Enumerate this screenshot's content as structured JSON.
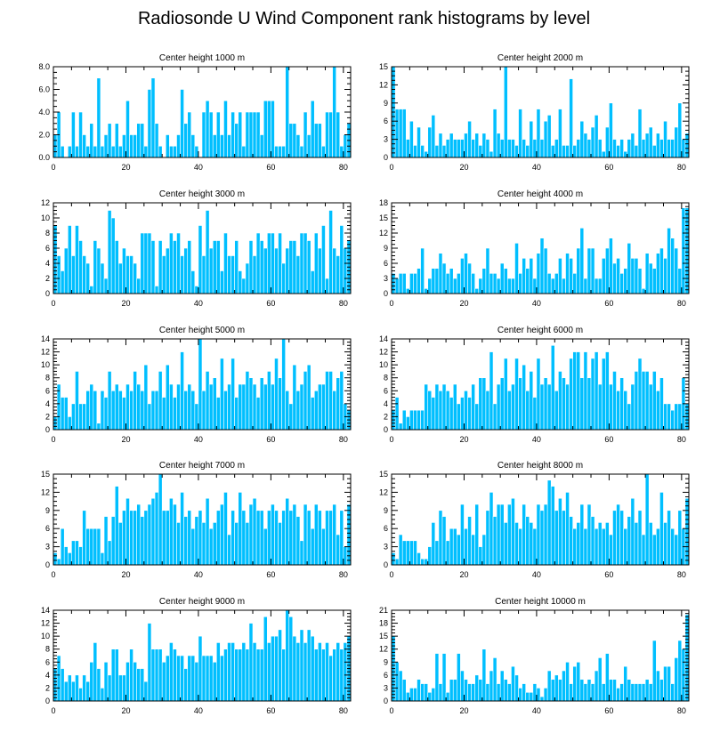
{
  "title": "Radiosonde U Wind Component rank histograms by level",
  "colors": {
    "bar": "#00bfff",
    "bar_edge": "#ffffff",
    "axis": "#000000"
  },
  "chart_data": [
    {
      "type": "bar",
      "title": "Center height 1000 m",
      "xlabel": "",
      "ylabel": "",
      "xlim": [
        0,
        82
      ],
      "ylim": [
        0,
        8
      ],
      "xticks": [
        0,
        20,
        40,
        60,
        80
      ],
      "yticks": [
        0,
        2,
        4,
        6,
        8
      ],
      "ytick_labels": [
        "0.0",
        "2.0",
        "4.0",
        "6.0",
        "8.0"
      ],
      "values": [
        2,
        4,
        1,
        0,
        1,
        4,
        1,
        4,
        2,
        1,
        3,
        1,
        7,
        1,
        2,
        3,
        1,
        3,
        1,
        2,
        5,
        2,
        2,
        3,
        3,
        1,
        6,
        7,
        3,
        1,
        0,
        2,
        1,
        1,
        2,
        6,
        3,
        4,
        2,
        1,
        0,
        4,
        5,
        4,
        2,
        4,
        2,
        5,
        2,
        4,
        3,
        4,
        1,
        4,
        4,
        4,
        4,
        2,
        5,
        5,
        5,
        1,
        1,
        1,
        8,
        3,
        3,
        2,
        1,
        4,
        2,
        5,
        3,
        3,
        1,
        4,
        4,
        8,
        4,
        1,
        2,
        3
      ]
    },
    {
      "type": "bar",
      "title": "Center height 2000 m",
      "xlabel": "",
      "ylabel": "",
      "xlim": [
        0,
        82
      ],
      "ylim": [
        0,
        15
      ],
      "xticks": [
        0,
        20,
        40,
        60,
        80
      ],
      "yticks": [
        0,
        3,
        6,
        9,
        12,
        15
      ],
      "ytick_labels": [
        "0",
        "3",
        "6",
        "9",
        "12",
        "15"
      ],
      "values": [
        15,
        8,
        8,
        8,
        3,
        6,
        2,
        5,
        2,
        1,
        5,
        7,
        2,
        4,
        2,
        3,
        4,
        3,
        3,
        3,
        4,
        6,
        3,
        4,
        2,
        4,
        3,
        1,
        8,
        4,
        3,
        15,
        3,
        3,
        2,
        8,
        3,
        2,
        6,
        3,
        8,
        3,
        6,
        7,
        2,
        3,
        8,
        2,
        2,
        13,
        2,
        3,
        6,
        4,
        3,
        5,
        7,
        3,
        1,
        5,
        9,
        3,
        2,
        3,
        1,
        3,
        4,
        2,
        8,
        3,
        4,
        5,
        2,
        4,
        3,
        6,
        3,
        3,
        5,
        9,
        3,
        4
      ]
    },
    {
      "type": "bar",
      "title": "Center height 3000 m",
      "xlabel": "",
      "ylabel": "",
      "xlim": [
        0,
        82
      ],
      "ylim": [
        0,
        12
      ],
      "xticks": [
        0,
        20,
        40,
        60,
        80
      ],
      "yticks": [
        0,
        2,
        4,
        6,
        8,
        10,
        12
      ],
      "ytick_labels": [
        "0",
        "2",
        "4",
        "6",
        "8",
        "10",
        "12"
      ],
      "values": [
        9,
        5,
        3,
        6,
        9,
        5,
        9,
        7,
        5,
        4,
        1,
        7,
        6,
        4,
        2,
        11,
        10,
        7,
        4,
        6,
        5,
        5,
        4,
        2,
        8,
        8,
        8,
        7,
        1,
        7,
        5,
        6,
        8,
        7,
        8,
        5,
        6,
        7,
        3,
        1,
        9,
        5,
        11,
        6,
        7,
        7,
        3,
        8,
        5,
        5,
        7,
        3,
        2,
        4,
        7,
        5,
        8,
        7,
        6,
        8,
        8,
        6,
        8,
        4,
        6,
        7,
        7,
        5,
        8,
        8,
        7,
        3,
        8,
        6,
        9,
        2,
        11,
        6,
        5,
        9,
        6,
        7
      ]
    },
    {
      "type": "bar",
      "title": "Center height 4000 m",
      "xlabel": "",
      "ylabel": "",
      "xlim": [
        0,
        82
      ],
      "ylim": [
        0,
        18
      ],
      "xticks": [
        0,
        20,
        40,
        60,
        80
      ],
      "yticks": [
        0,
        3,
        6,
        9,
        12,
        15,
        18
      ],
      "ytick_labels": [
        "0",
        "3",
        "6",
        "9",
        "12",
        "15",
        "18"
      ],
      "values": [
        4,
        3,
        4,
        4,
        1,
        4,
        4,
        5,
        9,
        1,
        3,
        5,
        5,
        8,
        6,
        4,
        5,
        3,
        4,
        7,
        8,
        6,
        4,
        1,
        3,
        5,
        9,
        4,
        4,
        3,
        6,
        5,
        3,
        3,
        10,
        4,
        7,
        5,
        7,
        3,
        8,
        11,
        9,
        4,
        3,
        4,
        7,
        3,
        8,
        7,
        4,
        9,
        13,
        3,
        9,
        9,
        3,
        3,
        7,
        9,
        11,
        6,
        7,
        4,
        5,
        10,
        7,
        7,
        5,
        1,
        8,
        6,
        5,
        8,
        9,
        7,
        13,
        11,
        9,
        5,
        17,
        17
      ]
    },
    {
      "type": "bar",
      "title": "Center height 5000 m",
      "xlabel": "",
      "ylabel": "",
      "xlim": [
        0,
        82
      ],
      "ylim": [
        0,
        14
      ],
      "xticks": [
        0,
        20,
        40,
        60,
        80
      ],
      "yticks": [
        0,
        2,
        4,
        6,
        8,
        10,
        12,
        14
      ],
      "ytick_labels": [
        "0",
        "2",
        "4",
        "6",
        "8",
        "10",
        "12",
        "14"
      ],
      "values": [
        2,
        7,
        5,
        5,
        2,
        4,
        9,
        4,
        4,
        6,
        7,
        6,
        1,
        6,
        5,
        9,
        6,
        7,
        6,
        5,
        7,
        6,
        9,
        7,
        6,
        10,
        4,
        6,
        6,
        9,
        5,
        10,
        7,
        5,
        7,
        12,
        6,
        7,
        6,
        4,
        14,
        6,
        9,
        7,
        8,
        5,
        11,
        6,
        7,
        11,
        5,
        7,
        7,
        9,
        8,
        7,
        5,
        8,
        7,
        9,
        7,
        11,
        8,
        14,
        6,
        4,
        10,
        6,
        7,
        9,
        10,
        5,
        6,
        7,
        7,
        9,
        9,
        6,
        8,
        9,
        4,
        3
      ]
    },
    {
      "type": "bar",
      "title": "Center height 6000 m",
      "xlabel": "",
      "ylabel": "",
      "xlim": [
        0,
        82
      ],
      "ylim": [
        0,
        14
      ],
      "xticks": [
        0,
        20,
        40,
        60,
        80
      ],
      "yticks": [
        0,
        2,
        4,
        6,
        8,
        10,
        12,
        14
      ],
      "ytick_labels": [
        "0",
        "2",
        "4",
        "6",
        "8",
        "10",
        "12",
        "14"
      ],
      "values": [
        3,
        5,
        1,
        3,
        2,
        3,
        3,
        3,
        3,
        7,
        6,
        5,
        7,
        6,
        7,
        6,
        5,
        7,
        4,
        5,
        6,
        5,
        7,
        4,
        8,
        8,
        6,
        12,
        4,
        7,
        8,
        11,
        6,
        7,
        11,
        8,
        10,
        6,
        9,
        5,
        11,
        7,
        8,
        7,
        13,
        6,
        9,
        8,
        7,
        11,
        12,
        12,
        8,
        12,
        8,
        11,
        12,
        7,
        11,
        12,
        7,
        9,
        6,
        8,
        6,
        4,
        7,
        9,
        11,
        9,
        9,
        7,
        9,
        6,
        8,
        4,
        4,
        3,
        4,
        4,
        8,
        4
      ]
    },
    {
      "type": "bar",
      "title": "Center height 7000 m",
      "xlabel": "",
      "ylabel": "",
      "xlim": [
        0,
        82
      ],
      "ylim": [
        0,
        15
      ],
      "xticks": [
        0,
        20,
        40,
        60,
        80
      ],
      "yticks": [
        0,
        3,
        6,
        9,
        12,
        15
      ],
      "ytick_labels": [
        "0",
        "3",
        "6",
        "9",
        "12",
        "15"
      ],
      "values": [
        2,
        1,
        6,
        3,
        2,
        4,
        4,
        3,
        9,
        6,
        6,
        6,
        6,
        2,
        8,
        4,
        8,
        13,
        7,
        9,
        11,
        9,
        9,
        10,
        8,
        9,
        10,
        11,
        12,
        15,
        9,
        9,
        11,
        10,
        7,
        12,
        8,
        9,
        6,
        8,
        9,
        7,
        11,
        6,
        7,
        9,
        10,
        12,
        5,
        9,
        7,
        12,
        9,
        7,
        10,
        11,
        9,
        9,
        6,
        9,
        10,
        9,
        7,
        9,
        11,
        9,
        10,
        8,
        4,
        10,
        9,
        6,
        10,
        9,
        6,
        9,
        9,
        10,
        5,
        9,
        3,
        10
      ]
    },
    {
      "type": "bar",
      "title": "Center height 8000 m",
      "xlabel": "",
      "ylabel": "",
      "xlim": [
        0,
        82
      ],
      "ylim": [
        0,
        15
      ],
      "xticks": [
        0,
        20,
        40,
        60,
        80
      ],
      "yticks": [
        0,
        3,
        6,
        9,
        12,
        15
      ],
      "ytick_labels": [
        "0",
        "3",
        "6",
        "9",
        "12",
        "15"
      ],
      "values": [
        2,
        1,
        5,
        4,
        4,
        4,
        4,
        2,
        1,
        1,
        3,
        7,
        4,
        9,
        8,
        4,
        6,
        6,
        5,
        10,
        6,
        8,
        5,
        10,
        3,
        5,
        9,
        12,
        8,
        10,
        10,
        7,
        10,
        11,
        7,
        6,
        10,
        8,
        7,
        6,
        10,
        9,
        10,
        14,
        13,
        9,
        11,
        9,
        12,
        8,
        6,
        7,
        10,
        6,
        10,
        8,
        6,
        7,
        6,
        7,
        5,
        9,
        10,
        9,
        6,
        8,
        11,
        7,
        9,
        5,
        15,
        7,
        5,
        6,
        12,
        7,
        9,
        6,
        5,
        9,
        6,
        11
      ]
    },
    {
      "type": "bar",
      "title": "Center height 9000 m",
      "xlabel": "",
      "ylabel": "",
      "xlim": [
        0,
        82
      ],
      "ylim": [
        0,
        14
      ],
      "xticks": [
        0,
        20,
        40,
        60,
        80
      ],
      "yticks": [
        0,
        2,
        4,
        6,
        8,
        10,
        12,
        14
      ],
      "ytick_labels": [
        "0",
        "2",
        "4",
        "6",
        "8",
        "10",
        "12",
        "14"
      ],
      "values": [
        5,
        7,
        5,
        3,
        4,
        3,
        4,
        2,
        4,
        3,
        6,
        9,
        5,
        2,
        6,
        4,
        8,
        8,
        4,
        4,
        6,
        8,
        6,
        5,
        5,
        3,
        12,
        8,
        8,
        8,
        6,
        7,
        9,
        8,
        7,
        7,
        5,
        7,
        7,
        6,
        10,
        7,
        7,
        7,
        6,
        9,
        7,
        8,
        9,
        9,
        8,
        8,
        9,
        8,
        12,
        9,
        8,
        8,
        13,
        9,
        10,
        10,
        11,
        8,
        14,
        13,
        10,
        9,
        11,
        9,
        11,
        10,
        8,
        9,
        8,
        9,
        7,
        8,
        9,
        8,
        9,
        10
      ]
    },
    {
      "type": "bar",
      "title": "Center height 10000 m",
      "xlabel": "",
      "ylabel": "",
      "xlim": [
        0,
        82
      ],
      "ylim": [
        0,
        21
      ],
      "xticks": [
        0,
        20,
        40,
        60,
        80
      ],
      "yticks": [
        0,
        3,
        6,
        9,
        12,
        15,
        18,
        21
      ],
      "ytick_labels": [
        "0",
        "3",
        "6",
        "9",
        "12",
        "15",
        "18",
        "21"
      ],
      "values": [
        15,
        9,
        7,
        5,
        2,
        3,
        3,
        5,
        4,
        4,
        2,
        3,
        11,
        4,
        11,
        2,
        5,
        5,
        11,
        7,
        5,
        4,
        4,
        6,
        5,
        12,
        4,
        7,
        10,
        4,
        7,
        5,
        4,
        8,
        6,
        3,
        4,
        2,
        2,
        4,
        3,
        1,
        3,
        7,
        5,
        6,
        5,
        7,
        9,
        4,
        8,
        9,
        5,
        4,
        5,
        4,
        7,
        10,
        4,
        11,
        5,
        5,
        3,
        4,
        8,
        5,
        4,
        4,
        4,
        4,
        5,
        4,
        14,
        7,
        5,
        8,
        8,
        4,
        10,
        14,
        12,
        20
      ]
    }
  ]
}
